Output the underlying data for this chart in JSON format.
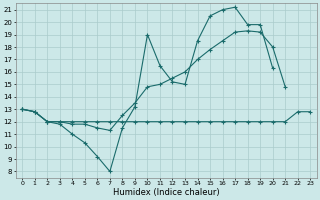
{
  "background_color": "#cce8e8",
  "grid_color": "#aacccc",
  "line_color": "#1a6b6b",
  "xlabel": "Humidex (Indice chaleur)",
  "xlim": [
    -0.5,
    23.5
  ],
  "ylim": [
    7.5,
    21.5
  ],
  "xtick_labels": [
    "0",
    "1",
    "2",
    "3",
    "4",
    "5",
    "6",
    "7",
    "8",
    "9",
    "10",
    "11",
    "12",
    "13",
    "14",
    "15",
    "16",
    "17",
    "18",
    "19",
    "20",
    "21",
    "22",
    "23"
  ],
  "ytick_labels": [
    "8",
    "9",
    "10",
    "11",
    "12",
    "13",
    "14",
    "15",
    "16",
    "17",
    "18",
    "19",
    "20",
    "21"
  ],
  "series": [
    {
      "x": [
        0,
        1,
        2,
        3,
        4,
        5,
        6,
        7,
        8,
        9,
        10,
        11,
        12,
        13,
        14,
        15,
        16,
        17,
        18,
        19,
        20,
        21
      ],
      "y": [
        13.0,
        12.8,
        12.0,
        11.8,
        11.0,
        10.3,
        9.2,
        8.0,
        11.5,
        13.2,
        19.0,
        16.5,
        15.2,
        15.0,
        18.5,
        20.5,
        21.0,
        21.2,
        19.8,
        19.8,
        16.3,
        null
      ]
    },
    {
      "x": [
        0,
        1,
        2,
        3,
        4,
        5,
        6,
        7,
        8,
        9,
        10,
        11,
        12,
        13,
        14,
        15,
        16,
        17,
        18,
        19,
        20,
        21
      ],
      "y": [
        13.0,
        12.8,
        12.0,
        12.0,
        11.8,
        11.8,
        11.5,
        11.3,
        12.5,
        13.5,
        14.8,
        15.0,
        15.5,
        16.0,
        17.0,
        17.8,
        18.5,
        19.2,
        19.3,
        19.2,
        18.0,
        14.8
      ]
    },
    {
      "x": [
        0,
        1,
        2,
        3,
        4,
        5,
        6,
        7,
        8,
        9,
        10,
        11,
        12,
        13,
        14,
        15,
        16,
        17,
        18,
        19,
        20,
        21,
        22,
        23
      ],
      "y": [
        13.0,
        12.8,
        12.0,
        12.0,
        12.0,
        12.0,
        12.0,
        12.0,
        12.0,
        12.0,
        12.0,
        12.0,
        12.0,
        12.0,
        12.0,
        12.0,
        12.0,
        12.0,
        12.0,
        12.0,
        12.0,
        12.0,
        12.8,
        12.8
      ]
    }
  ]
}
